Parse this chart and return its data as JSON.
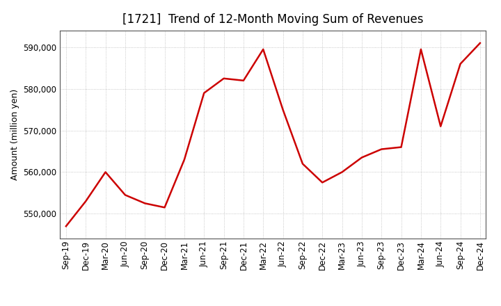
{
  "title": "[1721]  Trend of 12-Month Moving Sum of Revenues",
  "ylabel": "Amount (million yen)",
  "x_labels": [
    "Sep-19",
    "Dec-19",
    "Mar-20",
    "Jun-20",
    "Sep-20",
    "Dec-20",
    "Mar-21",
    "Jun-21",
    "Sep-21",
    "Dec-21",
    "Mar-22",
    "Jun-22",
    "Sep-22",
    "Dec-22",
    "Mar-23",
    "Jun-23",
    "Sep-23",
    "Dec-23",
    "Mar-24",
    "Jun-24",
    "Sep-24",
    "Dec-24"
  ],
  "values": [
    547000,
    553000,
    560000,
    554500,
    552500,
    551500,
    563000,
    579000,
    582500,
    582000,
    589500,
    575000,
    562000,
    557500,
    560000,
    563500,
    565500,
    566000,
    589500,
    571000,
    586000,
    591000
  ],
  "ylim": [
    544000,
    594000
  ],
  "yticks": [
    550000,
    560000,
    570000,
    580000,
    590000
  ],
  "line_color": "#cc0000",
  "line_width": 1.8,
  "bg_color": "#ffffff",
  "grid_color": "#999999",
  "title_fontsize": 12,
  "label_fontsize": 9,
  "tick_fontsize": 8.5
}
